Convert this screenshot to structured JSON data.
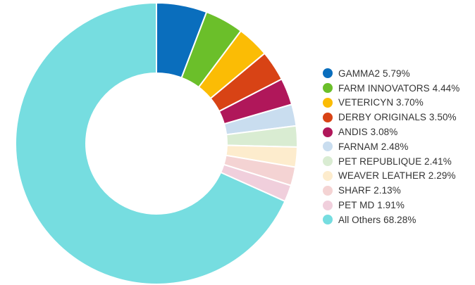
{
  "chart_data": {
    "type": "pie",
    "donut": true,
    "title": "",
    "legend_position": "right",
    "categories": [
      "GAMMA2",
      "FARM INNOVATORS",
      "VETERICYN",
      "DERBY ORIGINALS",
      "ANDIS",
      "FARNAM",
      "PET REPUBLIQUE",
      "WEAVER LEATHER",
      "SHARF",
      "PET MD",
      "All Others"
    ],
    "values": [
      5.79,
      4.44,
      3.7,
      3.5,
      3.08,
      2.48,
      2.41,
      2.29,
      2.13,
      1.91,
      68.28
    ],
    "legend_labels": [
      "GAMMA2 5.79%",
      "FARM INNOVATORS 4.44%",
      "VETERICYN 3.70%",
      "DERBY ORIGINALS 3.50%",
      "ANDIS 3.08%",
      "FARNAM 2.48%",
      "PET REPUBLIQUE 2.41%",
      "WEAVER LEATHER 2.29%",
      "SHARF 2.13%",
      "PET MD 1.91%",
      "All Others 68.28%"
    ],
    "colors": [
      "#0a6ebd",
      "#6bbf2a",
      "#fbbc05",
      "#d84315",
      "#b0175a",
      "#c9ddef",
      "#d9ecd2",
      "#fdeccd",
      "#f4d3d3",
      "#f0cfdc",
      "#76dde0"
    ]
  }
}
